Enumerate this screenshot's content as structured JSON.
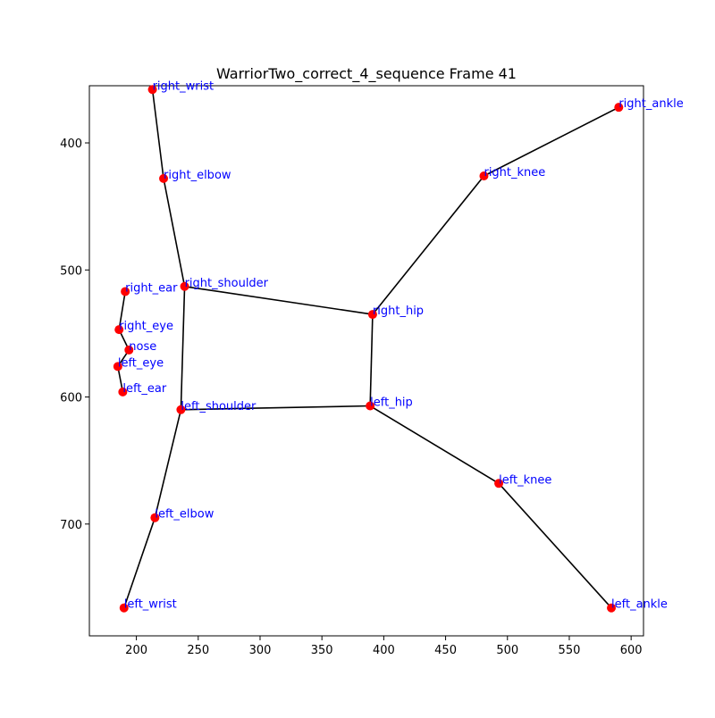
{
  "chart_data": {
    "type": "scatter",
    "title": "WarriorTwo_correct_4_sequence Frame 41",
    "xlabel": "",
    "ylabel": "",
    "xlim": [
      162,
      610
    ],
    "ylim": [
      788,
      355
    ],
    "y_inverted": true,
    "grid": false,
    "xticks": [
      200,
      250,
      300,
      350,
      400,
      450,
      500,
      550,
      600
    ],
    "yticks": [
      400,
      500,
      600,
      700
    ],
    "colors": {
      "point": "#ff0000",
      "bone": "#000000",
      "label": "#0000ff"
    },
    "keypoints": [
      {
        "name": "right_wrist",
        "x": 213,
        "y": 358
      },
      {
        "name": "right_ankle",
        "x": 590,
        "y": 372
      },
      {
        "name": "right_elbow",
        "x": 222,
        "y": 428
      },
      {
        "name": "right_knee",
        "x": 481,
        "y": 426
      },
      {
        "name": "right_shoulder",
        "x": 239,
        "y": 513
      },
      {
        "name": "right_ear",
        "x": 191,
        "y": 517
      },
      {
        "name": "right_hip",
        "x": 391,
        "y": 535
      },
      {
        "name": "right_eye",
        "x": 186,
        "y": 547
      },
      {
        "name": "nose",
        "x": 194,
        "y": 563
      },
      {
        "name": "left_eye",
        "x": 185,
        "y": 576
      },
      {
        "name": "left_ear",
        "x": 189,
        "y": 596
      },
      {
        "name": "left_hip",
        "x": 389,
        "y": 607
      },
      {
        "name": "left_shoulder",
        "x": 236,
        "y": 610
      },
      {
        "name": "left_knee",
        "x": 493,
        "y": 668
      },
      {
        "name": "left_elbow",
        "x": 215,
        "y": 695
      },
      {
        "name": "left_wrist",
        "x": 190,
        "y": 766
      },
      {
        "name": "left_ankle",
        "x": 584,
        "y": 766
      }
    ],
    "connections": [
      [
        "right_wrist",
        "right_elbow"
      ],
      [
        "right_elbow",
        "right_shoulder"
      ],
      [
        "right_shoulder",
        "left_shoulder"
      ],
      [
        "right_shoulder",
        "right_hip"
      ],
      [
        "left_shoulder",
        "left_elbow"
      ],
      [
        "left_elbow",
        "left_wrist"
      ],
      [
        "left_shoulder",
        "left_hip"
      ],
      [
        "right_hip",
        "left_hip"
      ],
      [
        "right_hip",
        "right_knee"
      ],
      [
        "right_knee",
        "right_ankle"
      ],
      [
        "left_hip",
        "left_knee"
      ],
      [
        "left_knee",
        "left_ankle"
      ],
      [
        "right_ear",
        "right_eye"
      ],
      [
        "right_eye",
        "nose"
      ],
      [
        "nose",
        "left_eye"
      ],
      [
        "left_eye",
        "left_ear"
      ]
    ]
  }
}
